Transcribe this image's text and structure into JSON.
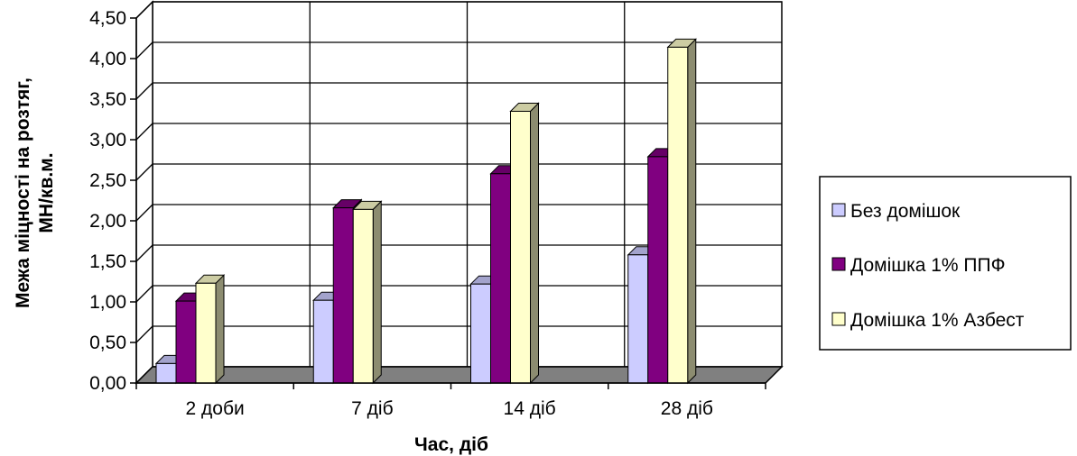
{
  "chart_data": {
    "type": "bar",
    "categories": [
      "2 доби",
      "7 діб",
      "14 діб",
      "28 діб"
    ],
    "series": [
      {
        "name": "Без домішок",
        "values": [
          0.24,
          1.02,
          1.22,
          1.58
        ],
        "color": "#ccccff"
      },
      {
        "name": "Домішка 1% ППФ",
        "values": [
          1.01,
          2.16,
          2.58,
          2.79
        ],
        "color": "#800080"
      },
      {
        "name": "Домішка 1% Азбест",
        "values": [
          1.23,
          2.14,
          3.35,
          4.14
        ],
        "color": "#ffffcc"
      }
    ],
    "y_ticks": [
      "0,00",
      "0,50",
      "1,00",
      "1,50",
      "2,00",
      "2,50",
      "3,00",
      "3,50",
      "4,00",
      "4,50"
    ],
    "ylim": [
      0,
      4.5
    ],
    "ylabel_line1": "Межа міцності на розтяг,",
    "ylabel_line2": "МН/кв.м.",
    "xlabel": "Час, діб",
    "grid": true,
    "legend_position": "right",
    "floor_color": "#808080"
  }
}
